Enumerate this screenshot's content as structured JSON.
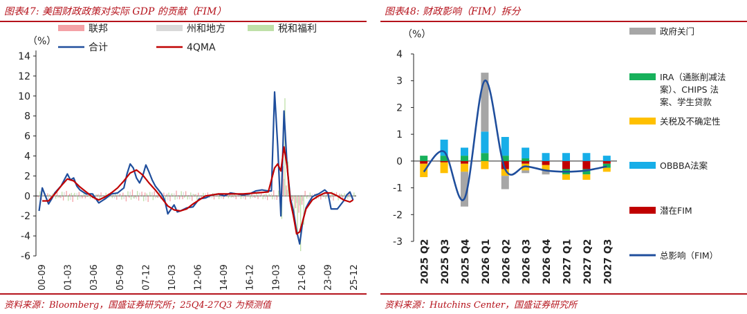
{
  "left": {
    "title": "图表47:  美国财政政策对实际 GDP 的贡献（FIM）",
    "source": "资料来源：Bloomberg，国盛证券研究所；25Q4-27Q3 为预测值"
  },
  "right": {
    "title": "图表48:  财政影响（FIM）拆分",
    "source": "资料来源：Hutchins Center，国盛证券研究所"
  },
  "colors": {
    "federal": "#f4a1a6",
    "state_local": "#d9d9d9",
    "tax_welfare": "#bfe0a8",
    "total": "#1f4e9c",
    "qma": "#c00000",
    "shutdown": "#a6a6a6",
    "ira": "#17b15b",
    "tariff": "#ffc000",
    "obbba": "#17aee8",
    "potential": "#c00000",
    "fim_total": "#1f4e9c"
  },
  "chart_data": [
    {
      "type": "bar",
      "unit": "（%）",
      "ylim": [
        -6,
        14
      ],
      "yticks": [
        "14",
        "12",
        "10",
        "8",
        "6",
        "4",
        "2",
        "0",
        "-2",
        "-4",
        "-6"
      ],
      "xtick_labels": [
        "00-09",
        "01-03",
        "03-06",
        "05-09",
        "07-12",
        "10-03",
        "12-06",
        "14-09",
        "16-12",
        "19-03",
        "21-06",
        "23-09",
        "25-12"
      ],
      "legend": [
        {
          "key": "federal",
          "label": "联邦",
          "kind": "bar"
        },
        {
          "key": "state_local",
          "label": "州和地方",
          "kind": "bar"
        },
        {
          "key": "tax_welfare",
          "label": "税和福利",
          "kind": "bar"
        },
        {
          "key": "total",
          "label": "合计",
          "kind": "line"
        },
        {
          "key": "qma",
          "label": "4QMA",
          "kind": "line"
        }
      ],
      "series": [
        {
          "name": "合计",
          "x": [
            2000.75,
            2001.0,
            2001.5,
            2001.75,
            2002.0,
            2002.5,
            2003.0,
            2003.25,
            2003.5,
            2003.75,
            2004.0,
            2004.5,
            2005.0,
            2005.5,
            2005.75,
            2006.0,
            2006.5,
            2007.0,
            2007.5,
            2007.75,
            2008.0,
            2008.25,
            2008.5,
            2008.75,
            2009.0,
            2009.25,
            2009.5,
            2009.75,
            2010.0,
            2010.25,
            2010.5,
            2010.75,
            2011.0,
            2011.5,
            2011.75,
            2012.0,
            2012.5,
            2013.0,
            2013.5,
            2014.0,
            2014.5,
            2015.0,
            2015.5,
            2016.0,
            2016.5,
            2017.0,
            2017.5,
            2018.0,
            2018.5,
            2019.0,
            2019.25,
            2019.5,
            2019.75,
            2020.0,
            2020.25,
            2020.5,
            2020.75,
            2021.0,
            2021.25,
            2021.5,
            2021.75,
            2022.0,
            2022.25,
            2022.5,
            2022.75,
            2023.0,
            2023.25,
            2023.5,
            2023.75,
            2024.0,
            2024.5,
            2025.0,
            2025.25,
            2025.5,
            2025.75
          ],
          "y": [
            -1.5,
            0.8,
            -0.8,
            -0.3,
            0.3,
            1.0,
            2.2,
            1.6,
            1.8,
            1.0,
            0.6,
            0.2,
            0.2,
            -0.7,
            -0.5,
            -0.3,
            0.2,
            0.3,
            0.8,
            2.2,
            3.2,
            2.8,
            1.8,
            1.3,
            2.0,
            3.1,
            2.4,
            1.6,
            1.0,
            0.6,
            0.2,
            -0.4,
            -1.8,
            -0.9,
            -1.6,
            -1.5,
            -1.2,
            -1.1,
            -0.3,
            -0.2,
            0.1,
            0.2,
            0.0,
            0.3,
            0.2,
            0.1,
            0.2,
            0.5,
            0.6,
            0.5,
            0.5,
            10.4,
            5.0,
            -2.0,
            8.5,
            3.0,
            -0.2,
            -1.5,
            -3.5,
            -4.8,
            -2.5,
            -1.2,
            -0.6,
            -0.1,
            0.1,
            0.2,
            0.4,
            0.6,
            0.3,
            -1.3,
            -1.3,
            -0.5,
            0.1,
            0.4,
            -0.4
          ]
        },
        {
          "name": "4QMA",
          "x": [
            2001.0,
            2001.5,
            2002.0,
            2002.5,
            2003.0,
            2003.5,
            2004.0,
            2004.5,
            2005.0,
            2005.5,
            2006.0,
            2006.5,
            2007.0,
            2007.5,
            2008.0,
            2008.5,
            2009.0,
            2009.5,
            2010.0,
            2010.5,
            2011.0,
            2011.5,
            2012.0,
            2012.5,
            2013.0,
            2013.5,
            2014.0,
            2014.5,
            2015.0,
            2016.0,
            2017.0,
            2018.0,
            2019.0,
            2019.5,
            2019.75,
            2020.0,
            2020.25,
            2020.5,
            2020.75,
            2021.0,
            2021.25,
            2021.5,
            2021.75,
            2022.0,
            2022.5,
            2023.0,
            2023.5,
            2024.0,
            2024.5,
            2025.0,
            2025.5,
            2025.75
          ],
          "y": [
            -0.5,
            -0.5,
            0.2,
            1.0,
            1.7,
            1.5,
            0.9,
            0.4,
            -0.1,
            -0.4,
            -0.1,
            0.3,
            0.8,
            1.5,
            2.3,
            2.6,
            2.1,
            1.3,
            0.6,
            -0.2,
            -1.0,
            -1.4,
            -1.5,
            -1.3,
            -0.8,
            -0.4,
            0.0,
            0.1,
            0.2,
            0.2,
            0.2,
            0.3,
            0.4,
            2.8,
            3.2,
            2.5,
            4.9,
            3.0,
            -0.5,
            -2.0,
            -3.8,
            -3.6,
            -2.5,
            -1.3,
            -0.4,
            0.0,
            0.3,
            0.3,
            0.0,
            -0.4,
            -0.6,
            -0.4
          ]
        }
      ]
    },
    {
      "type": "bar",
      "unit": "（%）",
      "ylim": [
        -3,
        4
      ],
      "yticks": [
        "4",
        "3",
        "2",
        "1",
        "0",
        "-1",
        "-2",
        "-3"
      ],
      "categories": [
        "2025 Q2",
        "2025 Q3",
        "2025 Q4",
        "2026 Q1",
        "2026 Q2",
        "2026 Q3",
        "2026 Q4",
        "2027 Q1",
        "2027 Q2",
        "2027 Q3"
      ],
      "legend": [
        {
          "key": "shutdown",
          "label": "政府关门",
          "kind": "bar"
        },
        {
          "key": "ira",
          "label": "IRA（通胀削减法案）、CHIPS 法案、学生贷款",
          "kind": "bar"
        },
        {
          "key": "tariff",
          "label": "关税及不确定性",
          "kind": "bar"
        },
        {
          "key": "obbba",
          "label": "OBBBA法案",
          "kind": "bar"
        },
        {
          "key": "potential",
          "label": "潜在FIM",
          "kind": "bar"
        },
        {
          "key": "fim_total",
          "label": "总影响（FIM）",
          "kind": "line"
        }
      ],
      "series": [
        {
          "name": "政府关门",
          "values": [
            0,
            0,
            -1.3,
            2.2,
            -0.5,
            -0.1,
            -0.15,
            0,
            0,
            0
          ]
        },
        {
          "name": "IRA（通胀削减法案）、CHIPS 法案、学生贷款",
          "values": [
            0.2,
            0.2,
            0.2,
            0.3,
            0.2,
            0.1,
            0,
            -0.2,
            -0.2,
            -0.15
          ]
        },
        {
          "name": "关税及不确定性",
          "values": [
            -0.5,
            -0.4,
            -0.3,
            -0.3,
            -0.25,
            -0.25,
            -0.2,
            -0.2,
            -0.2,
            -0.15
          ]
        },
        {
          "name": "OBBBA法案",
          "values": [
            0,
            0.6,
            0.3,
            0.8,
            0.7,
            0.4,
            0.3,
            0.3,
            0.3,
            0.2
          ]
        },
        {
          "name": "潜在FIM",
          "values": [
            -0.1,
            -0.05,
            -0.1,
            0,
            -0.3,
            -0.1,
            -0.15,
            -0.3,
            -0.3,
            -0.1
          ]
        },
        {
          "name": "总影响（FIM）",
          "values": [
            -0.4,
            0.35,
            -1.4,
            3.0,
            -0.3,
            -0.2,
            -0.35,
            -0.4,
            -0.35,
            -0.2
          ]
        }
      ]
    }
  ]
}
